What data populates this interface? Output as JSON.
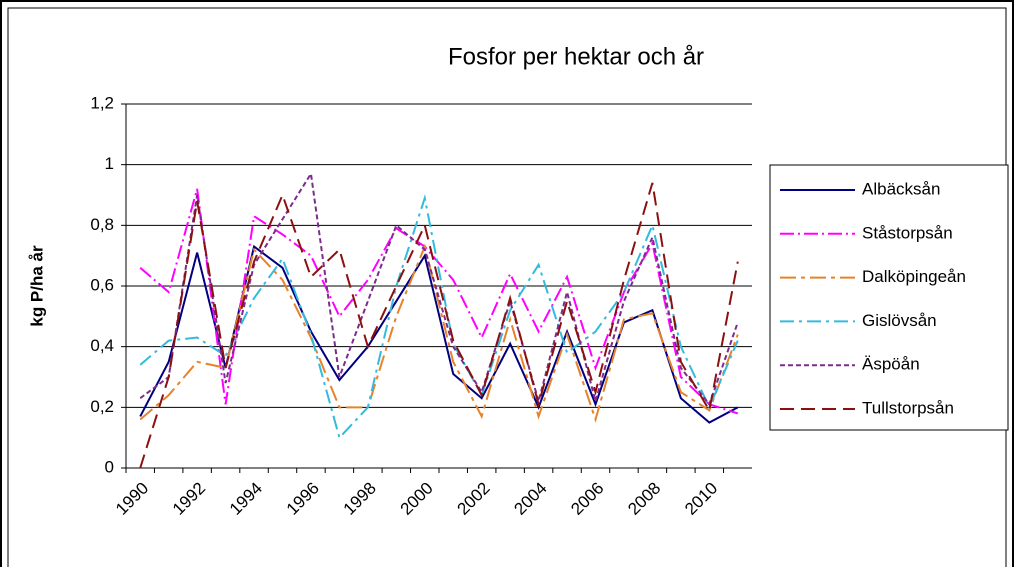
{
  "chart_data": {
    "type": "line",
    "title": "Fosfor per hektar och år",
    "y_label": "kg P/ha år",
    "categories": [
      "1990",
      null,
      "1992",
      null,
      "1994",
      null,
      "1996",
      null,
      "1998",
      null,
      "2000",
      null,
      "2002",
      null,
      "2004",
      null,
      "2006",
      null,
      "2008",
      null,
      "2010",
      null
    ],
    "ylim": [
      0,
      1.2
    ],
    "yticks": [
      0,
      {
        "value": 0.2,
        "label": "0,2"
      },
      {
        "value": 0.4,
        "label": "0,4"
      },
      {
        "value": 0.6,
        "label": "0,6"
      },
      {
        "value": 0.8,
        "label": "0,8"
      },
      1,
      {
        "value": 1.2,
        "label": "1,2"
      }
    ],
    "grid": true,
    "legend": "right",
    "series": [
      {
        "name": "Albäcksån",
        "color": "#000080",
        "dash": "none",
        "values": [
          0.17,
          0.35,
          0.71,
          0.33,
          0.73,
          0.66,
          0.45,
          0.29,
          0.4,
          0.55,
          0.7,
          0.31,
          0.23,
          0.41,
          0.2,
          0.45,
          0.21,
          0.48,
          0.52,
          0.23,
          0.15,
          0.2
        ]
      },
      {
        "name": "Ståstorpsån",
        "color": "#ff00ff",
        "dash": "14,4,2,4",
        "values": [
          0.66,
          0.58,
          0.92,
          0.21,
          0.83,
          0.77,
          0.7,
          0.5,
          0.62,
          0.79,
          0.73,
          0.62,
          0.43,
          0.64,
          0.45,
          0.63,
          0.33,
          0.58,
          0.74,
          0.3,
          0.21,
          0.18
        ]
      },
      {
        "name": "Dalköpingeån",
        "color": "#e8822a",
        "dash": "16,5,4,5",
        "values": [
          0.16,
          0.24,
          0.35,
          0.33,
          0.72,
          0.62,
          0.43,
          0.2,
          0.2,
          0.5,
          0.73,
          0.35,
          0.17,
          0.49,
          0.17,
          0.44,
          0.16,
          0.49,
          0.51,
          0.25,
          0.19,
          0.44
        ]
      },
      {
        "name": "Gislövsån",
        "color": "#33bbdd",
        "dash": "14,5,3,5",
        "values": [
          0.34,
          0.42,
          0.43,
          0.37,
          0.56,
          0.69,
          0.44,
          0.1,
          0.2,
          0.6,
          0.89,
          0.41,
          0.24,
          0.52,
          0.67,
          0.38,
          0.45,
          0.58,
          0.8,
          0.4,
          0.2,
          0.42
        ]
      },
      {
        "name": "Äspöån",
        "color": "#7b2c8c",
        "dash": "5,3",
        "values": [
          0.23,
          0.3,
          0.9,
          0.28,
          0.67,
          0.82,
          0.97,
          0.3,
          0.55,
          0.8,
          0.72,
          0.4,
          0.25,
          0.55,
          0.22,
          0.58,
          0.22,
          0.55,
          0.76,
          0.33,
          0.21,
          0.48
        ]
      },
      {
        "name": "Tullstorpsån",
        "color": "#8b1010",
        "dash": "14,7",
        "values": [
          0.0,
          0.3,
          0.88,
          0.33,
          0.68,
          0.9,
          0.63,
          0.72,
          0.4,
          0.6,
          0.8,
          0.42,
          0.24,
          0.56,
          0.21,
          0.55,
          0.25,
          0.62,
          0.94,
          0.35,
          0.19,
          0.68
        ]
      }
    ]
  }
}
